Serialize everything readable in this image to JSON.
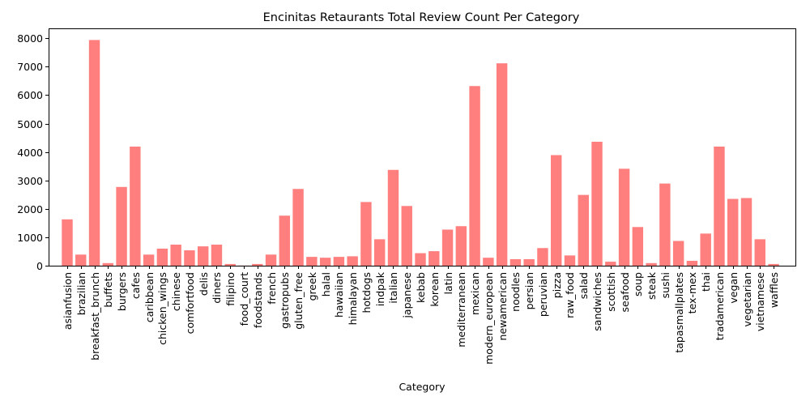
{
  "chart_data": {
    "type": "bar",
    "title": "Encinitas Retaurants Total Review Count Per Category",
    "xlabel": "Category",
    "ylabel": "",
    "ylim": [
      0,
      8350
    ],
    "yticks": [
      0,
      1000,
      2000,
      3000,
      4000,
      5000,
      6000,
      7000,
      8000
    ],
    "grid": false,
    "bar_color": "#ff7f7f",
    "categories": [
      "asianfusion",
      "brazilian",
      "breakfast_brunch",
      "buffets",
      "burgers",
      "cafes",
      "caribbean",
      "chicken_wings",
      "chinese",
      "comfortfood",
      "delis",
      "diners",
      "filipino",
      "food_court",
      "foodstands",
      "french",
      "gastropubs",
      "gluten_free",
      "greek",
      "halal",
      "hawaiian",
      "himalayan",
      "hotdogs",
      "indpak",
      "italian",
      "japanese",
      "kebab",
      "korean",
      "latin",
      "mediterranean",
      "mexican",
      "modern_european",
      "newamerican",
      "noodles",
      "persian",
      "peruvian",
      "pizza",
      "raw_food",
      "salad",
      "sandwiches",
      "scottish",
      "seafood",
      "soup",
      "steak",
      "sushi",
      "tapasmallplates",
      "tex-mex",
      "thai",
      "tradamerican",
      "vegan",
      "vegetarian",
      "vietnamese",
      "waffles"
    ],
    "values": [
      1630,
      390,
      7940,
      90,
      2770,
      4190,
      390,
      600,
      740,
      540,
      680,
      740,
      60,
      5,
      60,
      390,
      1760,
      2700,
      310,
      280,
      310,
      330,
      2240,
      930,
      3370,
      2100,
      440,
      510,
      1270,
      1390,
      6320,
      280,
      7120,
      230,
      230,
      620,
      3890,
      360,
      2490,
      4360,
      140,
      3410,
      1360,
      90,
      2890,
      870,
      170,
      1130,
      4190,
      2350,
      2380,
      930,
      60
    ]
  }
}
